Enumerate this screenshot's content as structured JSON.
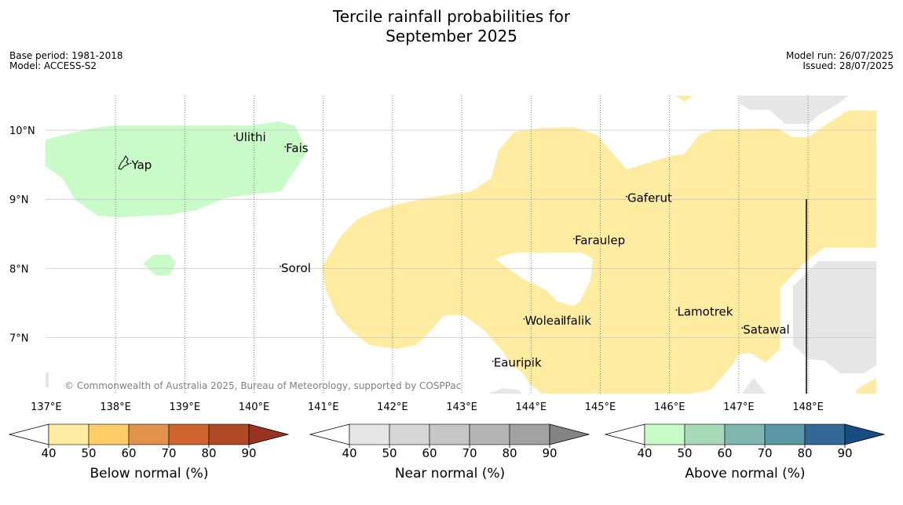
{
  "title": {
    "line1": "Tercile rainfall probabilities for",
    "line2": "September 2025"
  },
  "meta": {
    "base_period": "Base period: 1981-2018",
    "model": "Model: ACCESS-S2",
    "model_run": "Model run: 26/07/2025",
    "issued": "Issued: 28/07/2025"
  },
  "map": {
    "lon_range": [
      137,
      149
    ],
    "lat_range": [
      6.2,
      10.5
    ],
    "lon_labels": [
      "137°E",
      "138°E",
      "139°E",
      "140°E",
      "141°E",
      "142°E",
      "143°E",
      "144°E",
      "145°E",
      "146°E",
      "147°E",
      "148°E"
    ],
    "lat_labels": [
      "7°N",
      "8°N",
      "9°N",
      "10°N"
    ],
    "copyright": "© Commonwealth of Australia 2025, Bureau of Meteorology, supported by COSPPac",
    "places": [
      {
        "name": "Yap",
        "lon": 138.22,
        "lat": 9.52
      },
      {
        "name": "Ulithi",
        "lon": 139.72,
        "lat": 9.92
      },
      {
        "name": "Fais",
        "lon": 140.45,
        "lat": 9.76
      },
      {
        "name": "Gaferut",
        "lon": 145.38,
        "lat": 9.04
      },
      {
        "name": "Faraulep",
        "lon": 144.62,
        "lat": 8.43
      },
      {
        "name": "Sorol",
        "lon": 140.38,
        "lat": 8.03
      },
      {
        "name": "Woleai",
        "lon": 143.9,
        "lat": 7.27
      },
      {
        "name": "Ifalik",
        "lon": 144.45,
        "lat": 7.27
      },
      {
        "name": "Lamotrek",
        "lon": 146.1,
        "lat": 7.4
      },
      {
        "name": "Satawal",
        "lon": 147.05,
        "lat": 7.14
      },
      {
        "name": "Eauripik",
        "lon": 143.45,
        "lat": 6.66
      }
    ],
    "colors": {
      "above_40_50": "#c9fbc9",
      "below_40_50": "#ffeca0",
      "near_40_50": "#e6e6e6"
    }
  },
  "colorbars": [
    {
      "label": "Below normal (%)",
      "ticks": [
        "40",
        "50",
        "60",
        "70",
        "80",
        "90"
      ],
      "colors": [
        "#ffeca0",
        "#ffcc66",
        "#e2924a",
        "#d0652f",
        "#b04a26",
        "#983322"
      ]
    },
    {
      "label": "Near normal (%)",
      "ticks": [
        "40",
        "50",
        "60",
        "70",
        "80",
        "90"
      ],
      "colors": [
        "#e6e6e6",
        "#d6d6d6",
        "#c6c6c6",
        "#b4b4b4",
        "#a2a2a2",
        "#848484"
      ]
    },
    {
      "label": "Above normal (%)",
      "ticks": [
        "40",
        "50",
        "60",
        "70",
        "80",
        "90"
      ],
      "colors": [
        "#c9fbc9",
        "#a7d8b8",
        "#80b6b0",
        "#5a96a3",
        "#336897",
        "#174d80"
      ]
    }
  ]
}
